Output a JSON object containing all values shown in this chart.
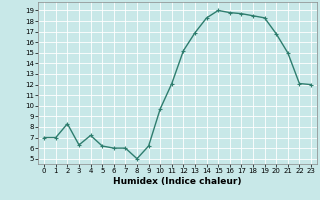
{
  "x": [
    0,
    1,
    2,
    3,
    4,
    5,
    6,
    7,
    8,
    9,
    10,
    11,
    12,
    13,
    14,
    15,
    16,
    17,
    18,
    19,
    20,
    21,
    22,
    23
  ],
  "y": [
    7.0,
    7.0,
    8.3,
    6.3,
    7.2,
    6.2,
    6.0,
    6.0,
    5.0,
    6.2,
    9.7,
    12.1,
    15.2,
    16.9,
    18.3,
    19.0,
    18.8,
    18.7,
    18.5,
    18.3,
    16.8,
    15.0,
    12.1,
    12.0
  ],
  "line_color": "#2e7d6e",
  "marker": "+",
  "marker_size": 3,
  "background_color": "#c8e8e8",
  "grid_color": "#ffffff",
  "xlabel": "Humidex (Indice chaleur)",
  "xlim": [
    -0.5,
    23.5
  ],
  "ylim": [
    4.5,
    19.8
  ],
  "yticks": [
    5,
    6,
    7,
    8,
    9,
    10,
    11,
    12,
    13,
    14,
    15,
    16,
    17,
    18,
    19
  ],
  "xticks": [
    0,
    1,
    2,
    3,
    4,
    5,
    6,
    7,
    8,
    9,
    10,
    11,
    12,
    13,
    14,
    15,
    16,
    17,
    18,
    19,
    20,
    21,
    22,
    23
  ],
  "tick_fontsize": 5,
  "xlabel_fontsize": 6.5,
  "linewidth": 1.0,
  "markeredgewidth": 0.8
}
